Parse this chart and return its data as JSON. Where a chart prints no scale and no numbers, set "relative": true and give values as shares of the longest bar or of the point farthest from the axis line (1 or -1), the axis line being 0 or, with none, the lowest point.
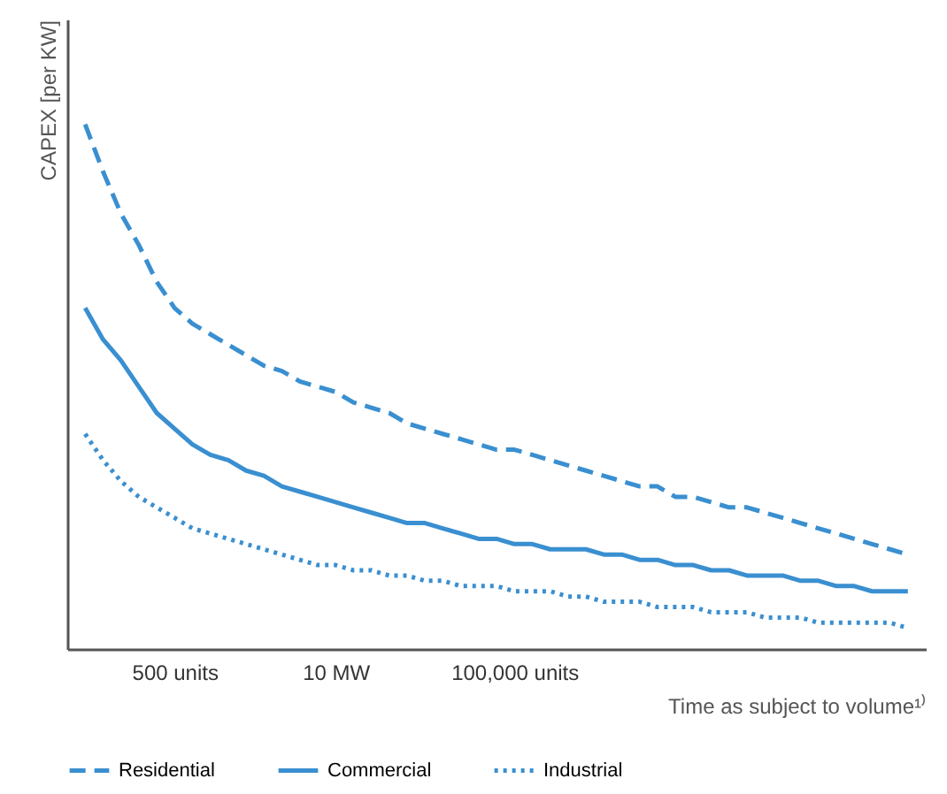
{
  "chart_data": {
    "type": "line",
    "relative": true,
    "xlabel": "Time as subject to volume¹⁾",
    "ylabel": "CAPEX [per KW]",
    "categories": [
      null,
      null,
      null,
      null,
      null,
      "500 units",
      null,
      null,
      null,
      null,
      null,
      null,
      null,
      null,
      "10 MW",
      null,
      null,
      null,
      null,
      null,
      null,
      null,
      null,
      null,
      "100,000 units",
      null,
      null,
      null,
      null,
      null,
      null,
      null,
      null,
      null,
      null,
      null,
      null,
      null,
      null,
      null,
      null,
      null,
      null,
      null,
      null,
      null,
      null
    ],
    "grid": false,
    "legend": "bottom",
    "marker": "none",
    "series": [
      {
        "name": "Residential",
        "color": "#3a8fd0",
        "line_style": "dashed",
        "values": [
          1,
          0.91,
          0.83,
          0.77,
          0.7,
          0.65,
          0.62,
          0.6,
          0.58,
          0.56,
          0.54,
          0.53,
          0.51,
          0.5,
          0.49,
          0.47,
          0.46,
          0.45,
          0.43,
          0.42,
          0.41,
          0.4,
          0.39,
          0.38,
          0.38,
          0.37,
          0.36,
          0.35,
          0.34,
          0.33,
          0.32,
          0.31,
          0.31,
          0.29,
          0.29,
          0.28,
          0.27,
          0.27,
          0.26,
          0.25,
          0.24,
          0.23,
          0.22,
          0.21,
          0.2,
          0.19,
          0.18
        ]
      },
      {
        "name": "Commercial",
        "color": "#3a8fd0",
        "line_style": "solid",
        "values": [
          0.65,
          0.59,
          0.55,
          0.5,
          0.45,
          0.42,
          0.39,
          0.37,
          0.36,
          0.34,
          0.33,
          0.31,
          0.3,
          0.29,
          0.28,
          0.27,
          0.26,
          0.25,
          0.24,
          0.24,
          0.23,
          0.22,
          0.21,
          0.21,
          0.2,
          0.2,
          0.19,
          0.19,
          0.19,
          0.18,
          0.18,
          0.17,
          0.17,
          0.16,
          0.16,
          0.15,
          0.15,
          0.14,
          0.14,
          0.14,
          0.13,
          0.13,
          0.12,
          0.12,
          0.11,
          0.11,
          0.11
        ]
      },
      {
        "name": "Industrial",
        "color": "#3a8fd0",
        "line_style": "dotted",
        "values": [
          0.41,
          0.36,
          0.32,
          0.29,
          0.27,
          0.25,
          0.23,
          0.22,
          0.21,
          0.2,
          0.19,
          0.18,
          0.17,
          0.16,
          0.16,
          0.15,
          0.15,
          0.14,
          0.14,
          0.13,
          0.13,
          0.12,
          0.12,
          0.12,
          0.11,
          0.11,
          0.11,
          0.1,
          0.1,
          0.09,
          0.09,
          0.09,
          0.08,
          0.08,
          0.08,
          0.07,
          0.07,
          0.07,
          0.06,
          0.06,
          0.06,
          0.05,
          0.05,
          0.05,
          0.05,
          0.05,
          0.04
        ]
      }
    ]
  }
}
